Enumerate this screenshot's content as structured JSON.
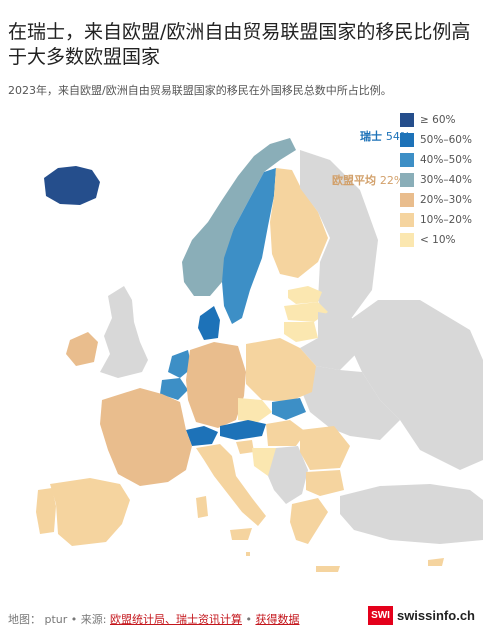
{
  "title": "在瑞士，来自欧盟/欧洲自由贸易联盟国家的移民比例高于大多数欧盟国家",
  "subtitle": "2023年，来自欧盟/欧洲自由贸易联盟国家的移民在外国移民总数中所占比例。",
  "legend": [
    {
      "label": "≥ 60%",
      "color": "#254e8c"
    },
    {
      "label": "50%–60%",
      "color": "#1d72b8"
    },
    {
      "label": "40%–50%",
      "color": "#3d8fc6"
    },
    {
      "label": "30%–40%",
      "color": "#8aaeb8"
    },
    {
      "label": "20%–30%",
      "color": "#e9bd8d"
    },
    {
      "label": "10%–20%",
      "color": "#f5d49f"
    },
    {
      "label": "< 10%",
      "color": "#fbe7b0"
    }
  ],
  "no_data_color": "#d8d8d8",
  "callouts": {
    "switzerland": {
      "name": "瑞士",
      "value": "54%",
      "color": "#1d72b8"
    },
    "eu_average": {
      "name": "欧盟平均",
      "value": "22%",
      "color": "#d2a06a"
    }
  },
  "footer": {
    "prefix": "地图：  ptur • 来源: ",
    "source": "欧盟统计局、瑞士资讯计算",
    "separator": " • ",
    "data_link": "获得数据"
  },
  "brand": {
    "box": "SWI",
    "name": "swissinfo.ch"
  }
}
